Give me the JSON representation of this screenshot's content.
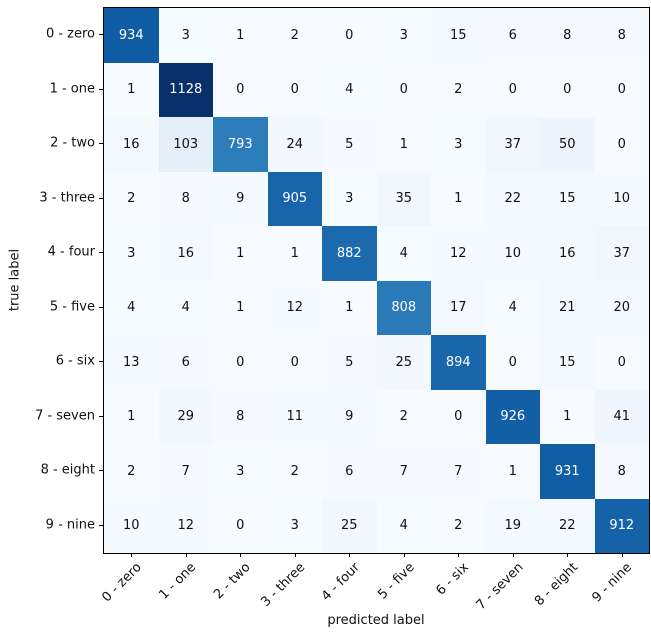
{
  "chart_data": {
    "type": "heatmap",
    "title": "",
    "xlabel": "predicted label",
    "ylabel": "true label",
    "categories": [
      "0 - zero",
      "1 - one",
      "2 - two",
      "3 - three",
      "4 - four",
      "5 - five",
      "6 - six",
      "7 - seven",
      "8 - eight",
      "9 - nine"
    ],
    "rows": [
      [
        934,
        3,
        1,
        2,
        0,
        3,
        15,
        6,
        8,
        8
      ],
      [
        1,
        1128,
        0,
        0,
        4,
        0,
        2,
        0,
        0,
        0
      ],
      [
        16,
        103,
        793,
        24,
        5,
        1,
        3,
        37,
        50,
        0
      ],
      [
        2,
        8,
        9,
        905,
        3,
        35,
        1,
        22,
        15,
        10
      ],
      [
        3,
        16,
        1,
        1,
        882,
        4,
        12,
        10,
        16,
        37
      ],
      [
        4,
        4,
        1,
        12,
        1,
        808,
        17,
        4,
        21,
        20
      ],
      [
        13,
        6,
        0,
        0,
        5,
        25,
        894,
        0,
        15,
        0
      ],
      [
        1,
        29,
        8,
        11,
        9,
        2,
        0,
        926,
        1,
        41
      ],
      [
        2,
        7,
        3,
        2,
        6,
        7,
        7,
        1,
        931,
        8
      ],
      [
        10,
        12,
        0,
        3,
        25,
        4,
        2,
        19,
        22,
        912
      ]
    ],
    "vmin": 0,
    "vmax": 1128,
    "colormap": "Blues",
    "colormap_stops": [
      "#f7fbff",
      "#deebf7",
      "#c6dbef",
      "#9ecae1",
      "#6baed6",
      "#4292c6",
      "#2171b5",
      "#08519c",
      "#08306b"
    ],
    "cell_text_dark": "#111111",
    "cell_text_light": "#ffffff",
    "grid": false,
    "legend": "none",
    "x_tick_rotation_deg": 45
  }
}
